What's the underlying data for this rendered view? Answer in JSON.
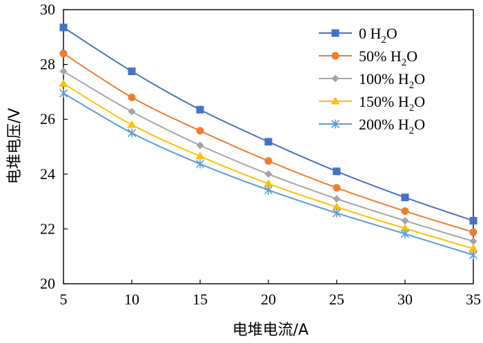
{
  "chart_data": {
    "type": "line",
    "xlabel": "电堆电流/A",
    "ylabel": "电堆电压/V",
    "xlim": [
      5,
      35
    ],
    "ylim": [
      20,
      30
    ],
    "xticks": [
      5,
      10,
      15,
      20,
      25,
      30,
      35
    ],
    "yticks": [
      20,
      22,
      24,
      26,
      28,
      30
    ],
    "grid": false,
    "legend_position": "top-right",
    "x": [
      5,
      10,
      15,
      20,
      25,
      30,
      35
    ],
    "series": [
      {
        "name": "0 H2O",
        "label_main": "0 H",
        "label_sub": "2",
        "label_tail": "O",
        "color": "#4472C4",
        "marker": "square",
        "values": [
          29.35,
          27.75,
          26.35,
          25.18,
          24.1,
          23.15,
          22.3
        ]
      },
      {
        "name": "50% H2O",
        "label_main": "50% H",
        "label_sub": "2",
        "label_tail": "O",
        "color": "#ED7D31",
        "marker": "circle",
        "values": [
          28.4,
          26.8,
          25.58,
          24.48,
          23.5,
          22.65,
          21.88
        ]
      },
      {
        "name": "100% H2O",
        "label_main": "100% H",
        "label_sub": "2",
        "label_tail": "O",
        "color": "#A5A5A5",
        "marker": "diamond",
        "values": [
          27.75,
          26.28,
          25.05,
          24.0,
          23.1,
          22.3,
          21.55
        ]
      },
      {
        "name": "150% H2O",
        "label_main": "150% H",
        "label_sub": "2",
        "label_tail": "O",
        "color": "#FFC000",
        "marker": "triangle",
        "values": [
          27.3,
          25.8,
          24.65,
          23.65,
          22.8,
          22.02,
          21.28
        ]
      },
      {
        "name": "200% H2O",
        "label_main": "200% H",
        "label_sub": "2",
        "label_tail": "O",
        "color": "#5B9BD5",
        "marker": "star",
        "values": [
          26.95,
          25.5,
          24.37,
          23.42,
          22.58,
          21.82,
          21.05
        ]
      }
    ]
  }
}
